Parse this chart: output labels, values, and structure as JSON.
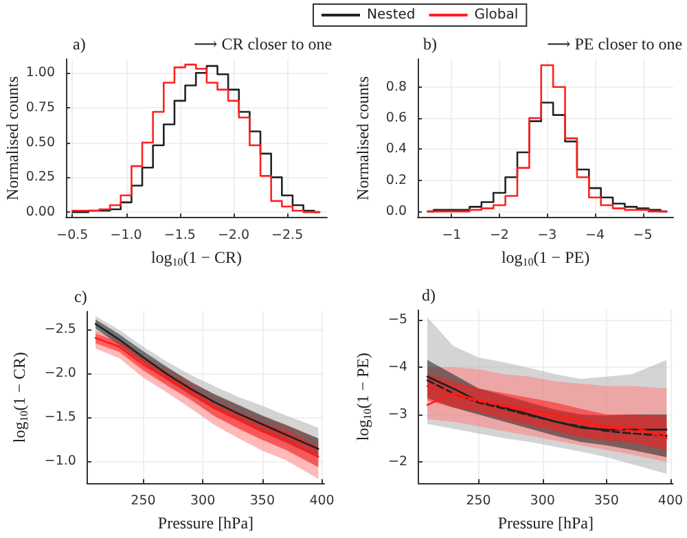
{
  "chart_data": [
    {
      "type": "step",
      "title": "a)",
      "subtitle": "⟶ CR closer to one",
      "xlabel": "log$_{10}$(1 − CR)",
      "ylabel": "Normalised counts",
      "legend": "top",
      "grid": true,
      "x": [
        -0.5,
        -0.6,
        -0.7,
        -0.8,
        -0.9,
        -1.0,
        -1.1,
        -1.2,
        -1.3,
        -1.4,
        -1.5,
        -1.6,
        -1.7,
        -1.8,
        -1.9,
        -2.0,
        -2.1,
        -2.2,
        -2.3,
        -2.4,
        -2.5,
        -2.6,
        -2.7,
        -2.8
      ],
      "series": [
        {
          "name": "Nested",
          "color": "#222222",
          "values": [
            0,
            0,
            0.01,
            0.01,
            0.02,
            0.07,
            0.19,
            0.32,
            0.48,
            0.63,
            0.8,
            0.91,
            1.0,
            1.05,
            0.99,
            0.88,
            0.72,
            0.58,
            0.42,
            0.25,
            0.12,
            0.05,
            0.01,
            0
          ]
        },
        {
          "name": "Global",
          "color": "#ff2020",
          "values": [
            0.01,
            0.01,
            0.01,
            0.02,
            0.05,
            0.12,
            0.33,
            0.5,
            0.72,
            0.93,
            1.04,
            1.06,
            1.03,
            0.93,
            0.88,
            0.8,
            0.68,
            0.48,
            0.26,
            0.08,
            0.04,
            0.01,
            0,
            0
          ]
        }
      ],
      "xlim": [
        -0.44,
        -2.87
      ],
      "xticks": [
        {
          "value": -0.5,
          "label": "−0.5"
        },
        {
          "value": -1.0,
          "label": "−1.0"
        },
        {
          "value": -1.5,
          "label": "−1.5"
        },
        {
          "value": -2.0,
          "label": "−2.0"
        },
        {
          "value": -2.5,
          "label": "−2.5"
        }
      ],
      "ylim": [
        -0.04,
        1.1
      ],
      "yticks": [
        {
          "value": 0,
          "label": "0.00"
        },
        {
          "value": 0.25,
          "label": "0.25"
        },
        {
          "value": 0.5,
          "label": "0.50"
        },
        {
          "value": 0.75,
          "label": "0.75"
        },
        {
          "value": 1,
          "label": "1.00"
        }
      ]
    },
    {
      "type": "step",
      "title": "b)",
      "subtitle": "⟶ PE closer to one",
      "xlabel": "log$_{10}$(1 − PE)",
      "ylabel": "Normalised counts",
      "grid": true,
      "x": [
        -0.5,
        -0.75,
        -1.0,
        -1.25,
        -1.5,
        -1.75,
        -2.0,
        -2.25,
        -2.5,
        -2.75,
        -3.0,
        -3.25,
        -3.5,
        -3.75,
        -4.0,
        -4.25,
        -4.5,
        -4.75,
        -5.0,
        -5.25,
        -5.5
      ],
      "series": [
        {
          "color": "#222222",
          "values": [
            0,
            0.01,
            0.01,
            0.01,
            0.03,
            0.06,
            0.12,
            0.22,
            0.38,
            0.58,
            0.7,
            0.62,
            0.45,
            0.27,
            0.15,
            0.09,
            0.05,
            0.03,
            0.02,
            0.01,
            0
          ]
        },
        {
          "color": "#ff2020",
          "values": [
            0,
            0,
            0,
            0,
            0.01,
            0.02,
            0.04,
            0.1,
            0.28,
            0.6,
            0.94,
            0.8,
            0.47,
            0.22,
            0.09,
            0.04,
            0.02,
            0.01,
            0.01,
            0,
            0
          ]
        }
      ],
      "xlim": [
        -0.29,
        -5.64
      ],
      "xticks": [
        {
          "value": -1,
          "label": "−1"
        },
        {
          "value": -2,
          "label": "−2"
        },
        {
          "value": -3,
          "label": "−3"
        },
        {
          "value": -4,
          "label": "−4"
        },
        {
          "value": -5,
          "label": "−5"
        }
      ],
      "ylim": [
        -0.04,
        0.98
      ],
      "yticks": [
        {
          "value": 0,
          "label": "0.0"
        },
        {
          "value": 0.2,
          "label": "0.2"
        },
        {
          "value": 0.4,
          "label": "0.4"
        },
        {
          "value": 0.6,
          "label": "0.6"
        },
        {
          "value": 0.8,
          "label": "0.8"
        }
      ]
    },
    {
      "type": "line",
      "title": "c)",
      "xlabel": "Pressure [hPa]",
      "ylabel": "log$_{10}$(1 − CR)",
      "grid": true,
      "x": [
        210,
        230,
        250,
        270,
        290,
        310,
        330,
        350,
        370,
        397
      ],
      "series": [
        {
          "color": "#b0b0b0",
          "values": [
            null,
            null,
            null,
            null,
            null,
            null,
            null,
            null,
            null,
            null
          ],
          "lower": [
            -2.65,
            -2.49,
            -2.3,
            -2.13,
            -1.98,
            -1.85,
            -1.73,
            -1.63,
            -1.52,
            -1.38
          ],
          "upper": [
            -2.46,
            -2.27,
            -2.06,
            -1.86,
            -1.68,
            -1.52,
            -1.38,
            -1.25,
            -1.12,
            -0.94
          ]
        },
        {
          "color": "#ff8080",
          "values": [
            null,
            null,
            null,
            null,
            null,
            null,
            null,
            null,
            null,
            null
          ],
          "lower": [
            -2.48,
            -2.39,
            -2.2,
            -2.06,
            -1.91,
            -1.75,
            -1.63,
            -1.51,
            -1.42,
            -1.25
          ],
          "upper": [
            -2.28,
            -2.17,
            -1.95,
            -1.78,
            -1.6,
            -1.41,
            -1.26,
            -1.12,
            -1.01,
            -0.8
          ]
        },
        {
          "color": "#202020",
          "values": [
            -2.56,
            -2.38,
            -2.18,
            -1.99,
            -1.82,
            -1.67,
            -1.54,
            -1.42,
            -1.3,
            -1.14
          ],
          "lower": [
            -2.61,
            -2.44,
            -2.25,
            -2.07,
            -1.9,
            -1.76,
            -1.64,
            -1.52,
            -1.41,
            -1.26
          ],
          "upper": [
            -2.51,
            -2.32,
            -2.12,
            -1.92,
            -1.75,
            -1.59,
            -1.46,
            -1.33,
            -1.21,
            -1.04
          ]
        },
        {
          "color": "#ff1a1a",
          "values": [
            -2.4,
            -2.3,
            -2.1,
            -1.94,
            -1.78,
            -1.6,
            -1.47,
            -1.34,
            -1.24,
            -1.05
          ],
          "lower": [
            -2.45,
            -2.35,
            -2.16,
            -2.01,
            -1.85,
            -1.68,
            -1.56,
            -1.44,
            -1.35,
            -1.17
          ],
          "upper": [
            -2.34,
            -2.24,
            -2.03,
            -1.86,
            -1.7,
            -1.51,
            -1.37,
            -1.24,
            -1.13,
            -0.93
          ]
        }
      ],
      "xlim": [
        203,
        402
      ],
      "xticks": [
        250,
        300,
        350,
        400
      ],
      "ylim": [
        -0.75,
        -2.7
      ],
      "yticks": [
        {
          "value": -2.5,
          "label": "−2.5"
        },
        {
          "value": -2.0,
          "label": "−2.0"
        },
        {
          "value": -1.5,
          "label": "−1.5"
        },
        {
          "value": -1.0,
          "label": "−1.0"
        }
      ]
    },
    {
      "type": "line",
      "title": "d)",
      "xlabel": "Pressure [hPa]",
      "ylabel": "log$_{10}$(1 − PE)",
      "grid": true,
      "x": [
        210,
        230,
        250,
        270,
        290,
        310,
        330,
        350,
        370,
        397
      ],
      "series": [
        {
          "color": "#b0b0b0",
          "values": [
            null,
            null,
            null,
            null,
            null,
            null,
            null,
            null,
            null,
            null
          ],
          "lower": [
            -5.05,
            -4.45,
            -4.2,
            -4.1,
            -3.98,
            -3.85,
            -3.75,
            -3.8,
            -3.85,
            -4.15
          ],
          "upper": [
            -2.8,
            -2.7,
            -2.6,
            -2.5,
            -2.42,
            -2.32,
            -2.22,
            -2.1,
            -1.95,
            -1.75
          ]
        },
        {
          "color": "#ff8080",
          "values": [
            null,
            null,
            null,
            null,
            null,
            null,
            null,
            null,
            null,
            null
          ],
          "lower": [
            -4.0,
            -4.0,
            -3.95,
            -3.85,
            -3.8,
            -3.7,
            -3.65,
            -3.6,
            -3.6,
            -3.55
          ],
          "upper": [
            -2.9,
            -2.85,
            -2.75,
            -2.65,
            -2.55,
            -2.45,
            -2.35,
            -2.25,
            -2.15,
            -2.0
          ]
        },
        {
          "color": "#202020",
          "values": [
            -3.8,
            -3.55,
            -3.28,
            -3.15,
            -3.0,
            -2.85,
            -2.72,
            -2.68,
            -2.68,
            -2.68
          ],
          "lower": [
            -4.15,
            -3.85,
            -3.55,
            -3.4,
            -3.25,
            -3.1,
            -3.0,
            -2.98,
            -3.0,
            -3.0
          ],
          "upper": [
            -3.35,
            -3.15,
            -3.0,
            -2.85,
            -2.7,
            -2.55,
            -2.42,
            -2.35,
            -2.25,
            -2.1
          ]
        },
        {
          "color": "#202020",
          "line_style": "dashed",
          "values": [
            -3.72,
            -3.45,
            -3.25,
            -3.12,
            -2.98,
            -2.85,
            -2.75,
            -2.65,
            -2.6,
            -2.55
          ]
        },
        {
          "color": "#ff1a1a",
          "values": [
            -3.2,
            -3.45,
            -3.3,
            -3.2,
            -3.1,
            -3.0,
            -2.88,
            -2.75,
            -2.75,
            -2.5
          ],
          "lower": [
            -3.85,
            -3.7,
            -3.55,
            -3.45,
            -3.35,
            -3.25,
            -3.12,
            -3.0,
            -3.0,
            -2.95
          ],
          "upper": [
            -3.3,
            -3.15,
            -3.05,
            -2.9,
            -2.78,
            -2.65,
            -2.52,
            -2.45,
            -2.4,
            -2.25
          ]
        },
        {
          "color": "#ff1a1a",
          "line_style": "dashed",
          "values": [
            -3.6,
            -3.4,
            -3.28,
            -3.17,
            -3.05,
            -2.93,
            -2.82,
            -2.72,
            -2.66,
            -2.6
          ]
        }
      ],
      "xlim": [
        203,
        402
      ],
      "xticks": [
        250,
        300,
        350,
        400
      ],
      "ylim": [
        -1.55,
        -5.2
      ],
      "yticks": [
        {
          "value": -5,
          "label": "−5"
        },
        {
          "value": -4,
          "label": "−4"
        },
        {
          "value": -3,
          "label": "−3"
        },
        {
          "value": -2,
          "label": "−2"
        }
      ]
    }
  ]
}
